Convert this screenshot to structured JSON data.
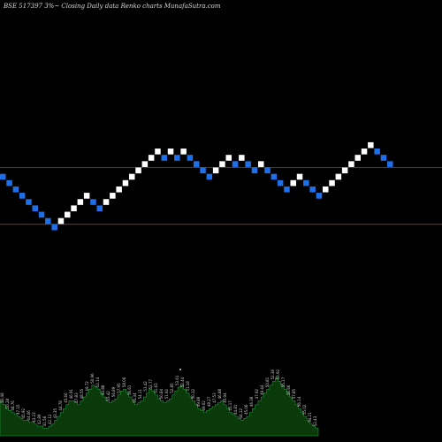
{
  "chart_data": {
    "type": "renko",
    "title": "BSE 517397 3%~  Closing Daily data  Renko  charts MunafaSutra.com",
    "colors": {
      "up": "#ffffff",
      "down": "#1f6fe8",
      "line": "#8b4513",
      "background": "#000000",
      "volume": "#0a3a0a",
      "volume_edge": "#2ea84a"
    },
    "horizontal_lines": [
      {
        "y_level": 11
      },
      {
        "y_level": 3
      }
    ],
    "bricks": [
      {
        "dir": "down",
        "level": 10
      },
      {
        "dir": "down",
        "level": 9
      },
      {
        "dir": "down",
        "level": 8
      },
      {
        "dir": "down",
        "level": 7
      },
      {
        "dir": "down",
        "level": 6
      },
      {
        "dir": "down",
        "level": 5
      },
      {
        "dir": "down",
        "level": 4
      },
      {
        "dir": "down",
        "level": 3
      },
      {
        "dir": "down",
        "level": 2
      },
      {
        "dir": "up",
        "level": 3
      },
      {
        "dir": "up",
        "level": 4
      },
      {
        "dir": "up",
        "level": 5
      },
      {
        "dir": "up",
        "level": 6
      },
      {
        "dir": "up",
        "level": 7
      },
      {
        "dir": "down",
        "level": 6
      },
      {
        "dir": "down",
        "level": 5
      },
      {
        "dir": "up",
        "level": 6
      },
      {
        "dir": "up",
        "level": 7
      },
      {
        "dir": "up",
        "level": 8
      },
      {
        "dir": "up",
        "level": 9
      },
      {
        "dir": "up",
        "level": 10
      },
      {
        "dir": "up",
        "level": 11
      },
      {
        "dir": "up",
        "level": 12
      },
      {
        "dir": "up",
        "level": 13
      },
      {
        "dir": "up",
        "level": 14
      },
      {
        "dir": "down",
        "level": 13
      },
      {
        "dir": "up",
        "level": 14
      },
      {
        "dir": "down",
        "level": 13
      },
      {
        "dir": "up",
        "level": 14
      },
      {
        "dir": "down",
        "level": 13
      },
      {
        "dir": "down",
        "level": 12
      },
      {
        "dir": "down",
        "level": 11
      },
      {
        "dir": "down",
        "level": 10
      },
      {
        "dir": "up",
        "level": 11
      },
      {
        "dir": "up",
        "level": 12
      },
      {
        "dir": "up",
        "level": 13
      },
      {
        "dir": "down",
        "level": 12
      },
      {
        "dir": "up",
        "level": 13
      },
      {
        "dir": "down",
        "level": 12
      },
      {
        "dir": "down",
        "level": 11
      },
      {
        "dir": "up",
        "level": 12
      },
      {
        "dir": "down",
        "level": 11
      },
      {
        "dir": "down",
        "level": 10
      },
      {
        "dir": "down",
        "level": 9
      },
      {
        "dir": "down",
        "level": 8
      },
      {
        "dir": "up",
        "level": 9
      },
      {
        "dir": "up",
        "level": 10
      },
      {
        "dir": "down",
        "level": 9
      },
      {
        "dir": "down",
        "level": 8
      },
      {
        "dir": "down",
        "level": 7
      },
      {
        "dir": "up",
        "level": 8
      },
      {
        "dir": "up",
        "level": 9
      },
      {
        "dir": "up",
        "level": 10
      },
      {
        "dir": "up",
        "level": 11
      },
      {
        "dir": "up",
        "level": 12
      },
      {
        "dir": "up",
        "level": 13
      },
      {
        "dir": "up",
        "level": 14
      },
      {
        "dir": "up",
        "level": 15
      },
      {
        "dir": "down",
        "level": 14
      },
      {
        "dir": "down",
        "level": 13
      },
      {
        "dir": "down",
        "level": 12
      }
    ],
    "volume_profile": [
      18,
      16,
      14,
      13,
      12,
      11,
      10,
      9,
      8,
      8,
      7,
      7,
      6,
      5,
      5,
      4,
      4,
      5,
      6,
      8,
      10,
      12,
      14,
      16,
      18,
      18,
      17,
      16,
      18,
      20,
      22,
      24,
      26,
      25,
      24,
      22,
      20,
      18,
      17,
      18,
      19,
      21,
      23,
      24,
      22,
      20,
      18,
      16,
      17,
      18,
      20,
      22,
      24,
      23,
      21,
      19,
      18,
      17,
      18,
      19,
      21,
      23,
      25,
      26,
      24,
      22,
      20,
      18,
      16,
      14,
      13,
      12,
      13,
      14,
      15,
      16,
      17,
      18,
      16,
      14,
      12,
      11,
      10,
      9,
      8,
      9,
      10,
      12,
      14,
      16,
      18,
      20,
      22,
      24,
      26,
      28,
      30,
      28,
      26,
      24,
      22,
      20,
      18,
      16,
      14,
      12,
      10,
      8,
      6,
      5,
      4
    ],
    "volume_labels": [
      "52.48",
      "50.28",
      "48.76",
      "47.15",
      "45.92",
      "44.06",
      "43.23",
      "42.89",
      "41.56",
      "42.12",
      "43.35",
      "44.78",
      "45.66",
      "46.91",
      "47.83",
      "48.55",
      "49.72",
      "50.96",
      "52.14",
      "53.88",
      "55.42",
      "56.89",
      "57.95",
      "58.06",
      "56.61",
      "55.34",
      "54.11",
      "53.42",
      "52.77",
      "51.63",
      "50.84",
      "51.92",
      "52.85",
      "53.61",
      "52.44",
      "51.18",
      "50.32",
      "49.86",
      "49.02",
      "48.27",
      "47.53",
      "46.88",
      "45.94",
      "45.17",
      "44.81",
      "44.12",
      "45.06",
      "46.38",
      "47.92",
      "49.44",
      "50.81",
      "52.36",
      "53.92",
      "55.17",
      "56.66",
      "57.85",
      "56.14",
      "55.02",
      "54.21",
      "52.43"
    ]
  }
}
